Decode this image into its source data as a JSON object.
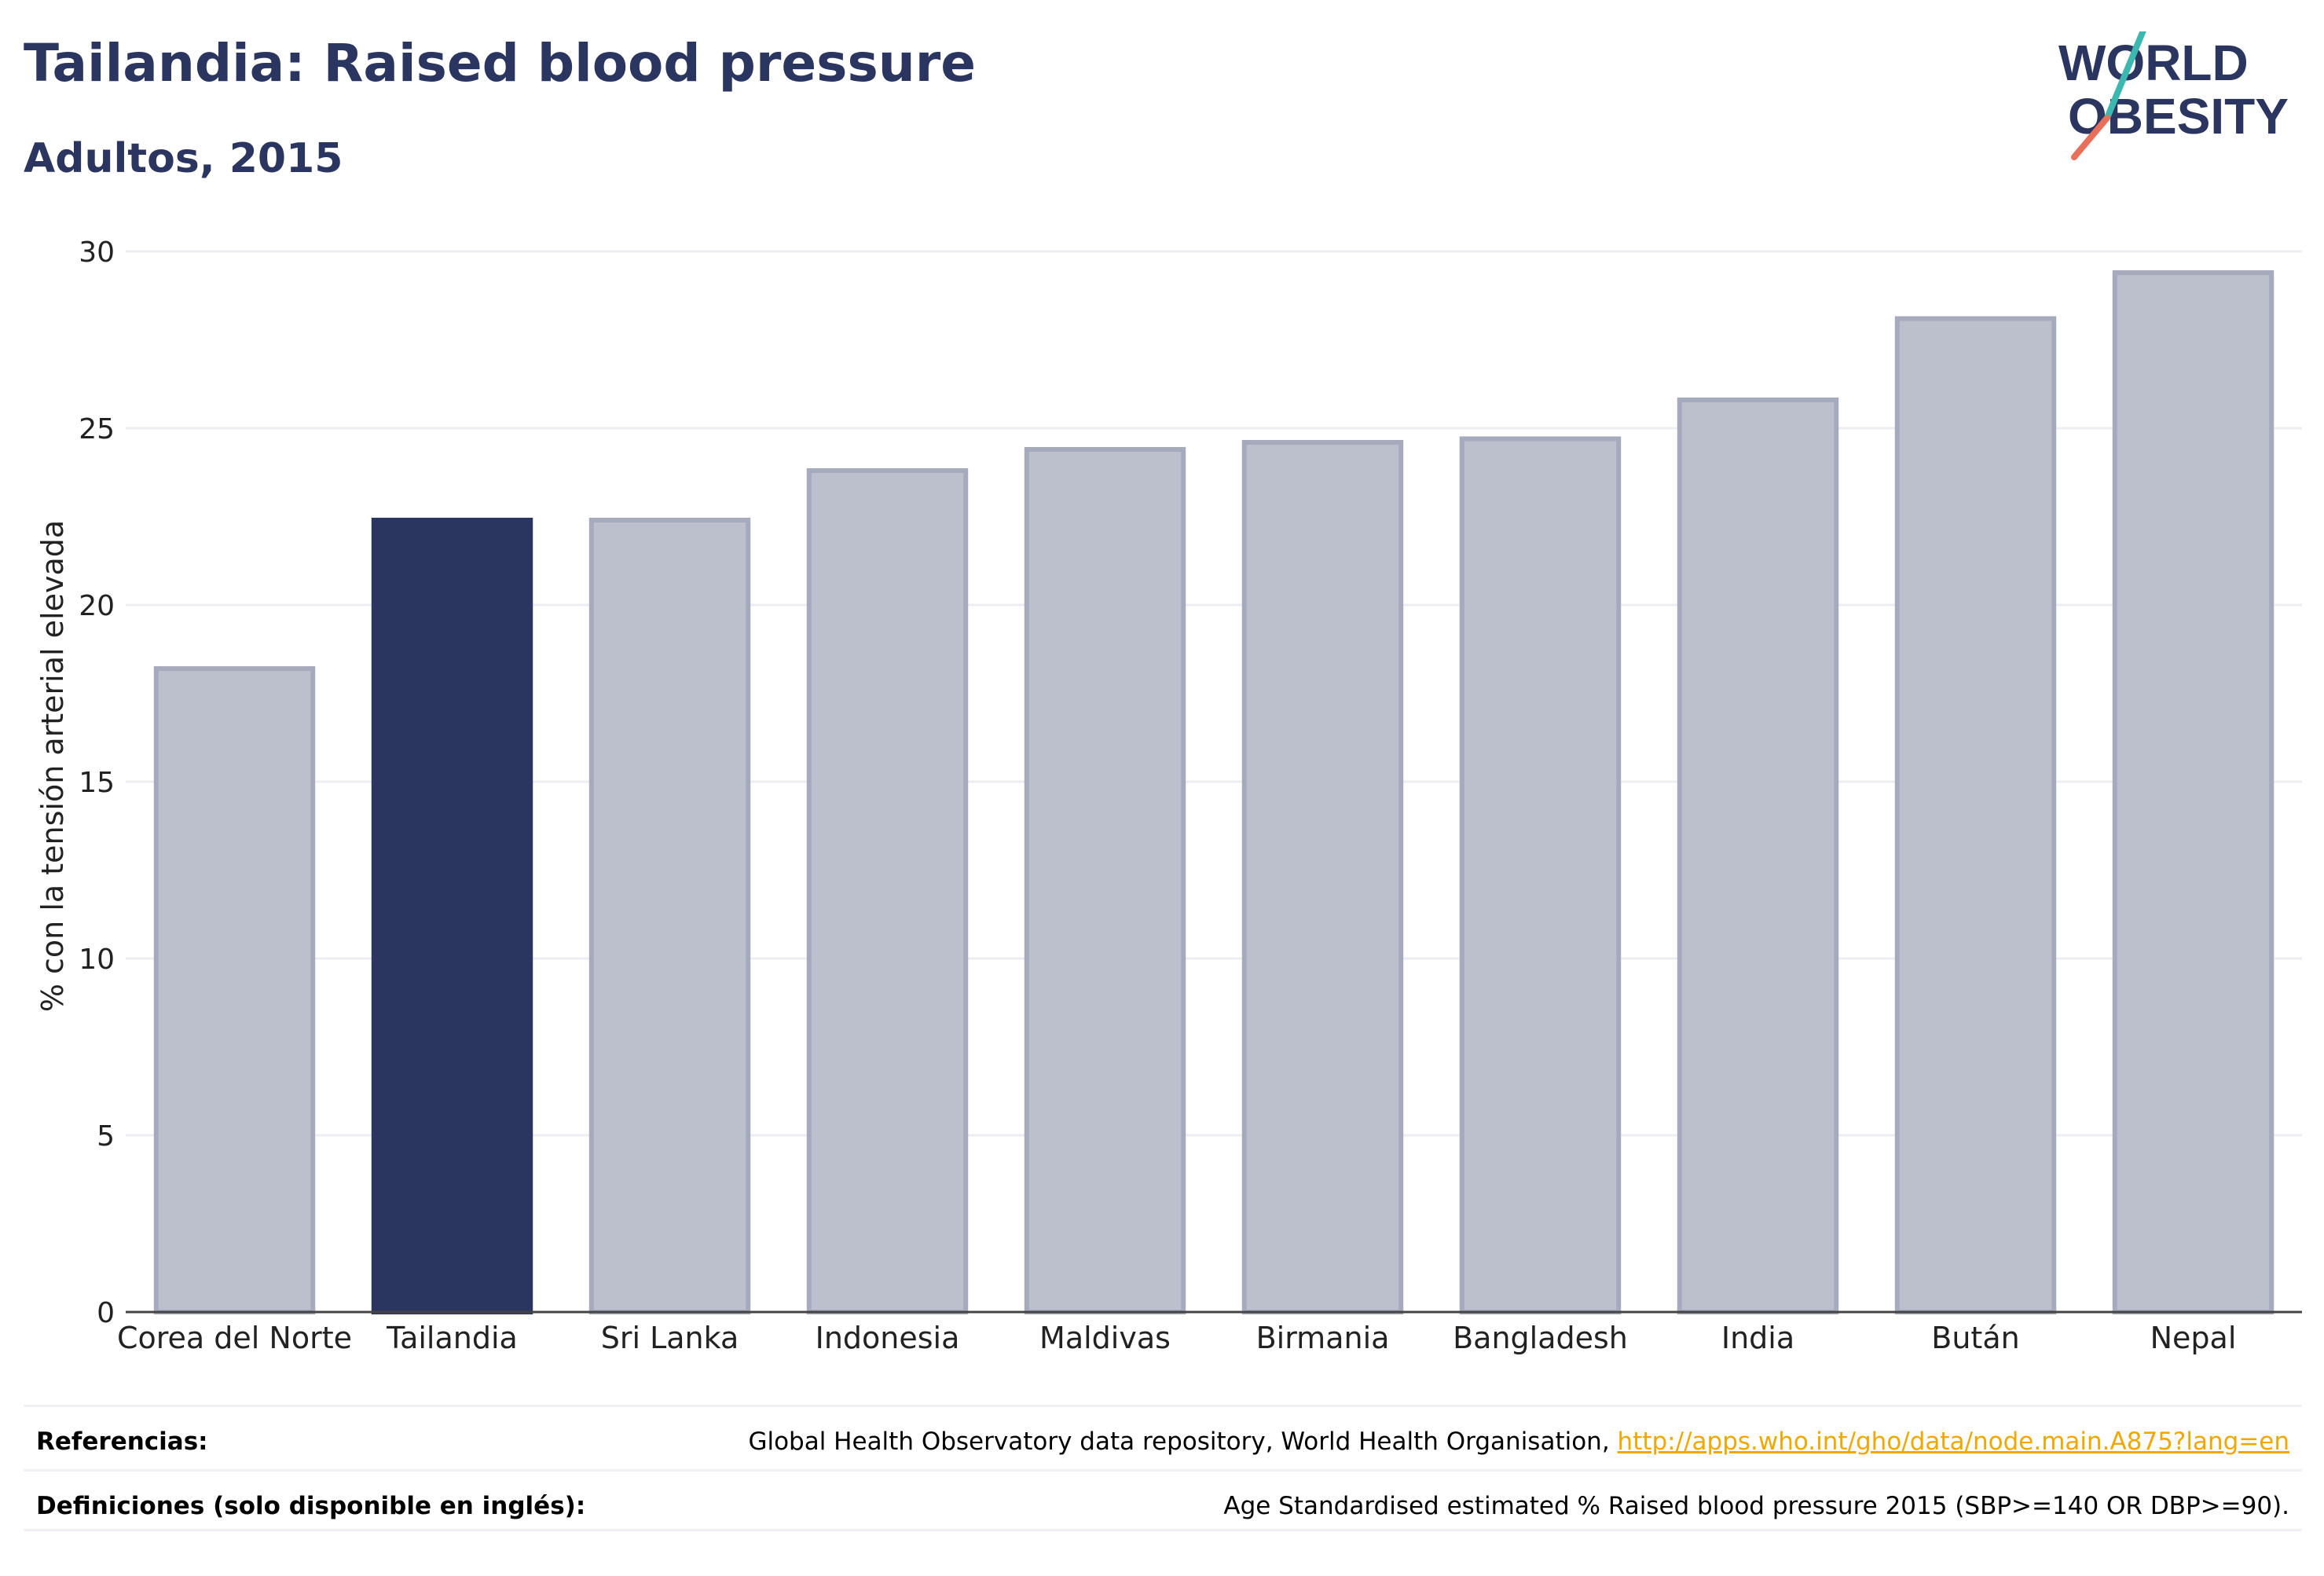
{
  "header": {
    "title": "Tailandia: Raised blood pressure",
    "subtitle": "Adultos, 2015"
  },
  "logo": {
    "line1": "WORLD",
    "line2": "OBESITY",
    "colors": {
      "text": "#2b3660",
      "slash_top": "#3cb8b0",
      "slash_bottom": "#e86f5a"
    }
  },
  "colors": {
    "highlight": "#2b3660",
    "bar_fill": "#bcc0cd",
    "bar_stroke": "#a5aabc",
    "grid": "#eceef3",
    "axis": "#444444"
  },
  "chart_data": {
    "type": "bar",
    "categories": [
      "Corea del Norte",
      "Tailandia",
      "Sri Lanka",
      "Indonesia",
      "Maldivas",
      "Birmania",
      "Bangladesh",
      "India",
      "Bután",
      "Nepal"
    ],
    "values": [
      18.2,
      22.4,
      22.4,
      23.8,
      24.4,
      24.6,
      24.7,
      25.8,
      28.1,
      29.4
    ],
    "highlight": "Tailandia",
    "title": "",
    "xlabel": "",
    "ylabel": "% con la tensión arterial elevada",
    "ylim": [
      0,
      30
    ],
    "yticks": [
      0,
      5,
      10,
      15,
      20,
      25,
      30
    ],
    "grid": true,
    "legend": "none"
  },
  "footer": {
    "references_label": "Referencias:",
    "references_text": "Global Health Observatory data repository, World Health Organisation, ",
    "references_link": "http://apps.who.int/gho/data/node.main.A875?lang=en",
    "definitions_label": "Definiciones (solo disponible en inglés):",
    "definitions_text": "Age Standardised estimated % Raised blood pressure 2015 (SBP>=140 OR DBP>=90)."
  }
}
